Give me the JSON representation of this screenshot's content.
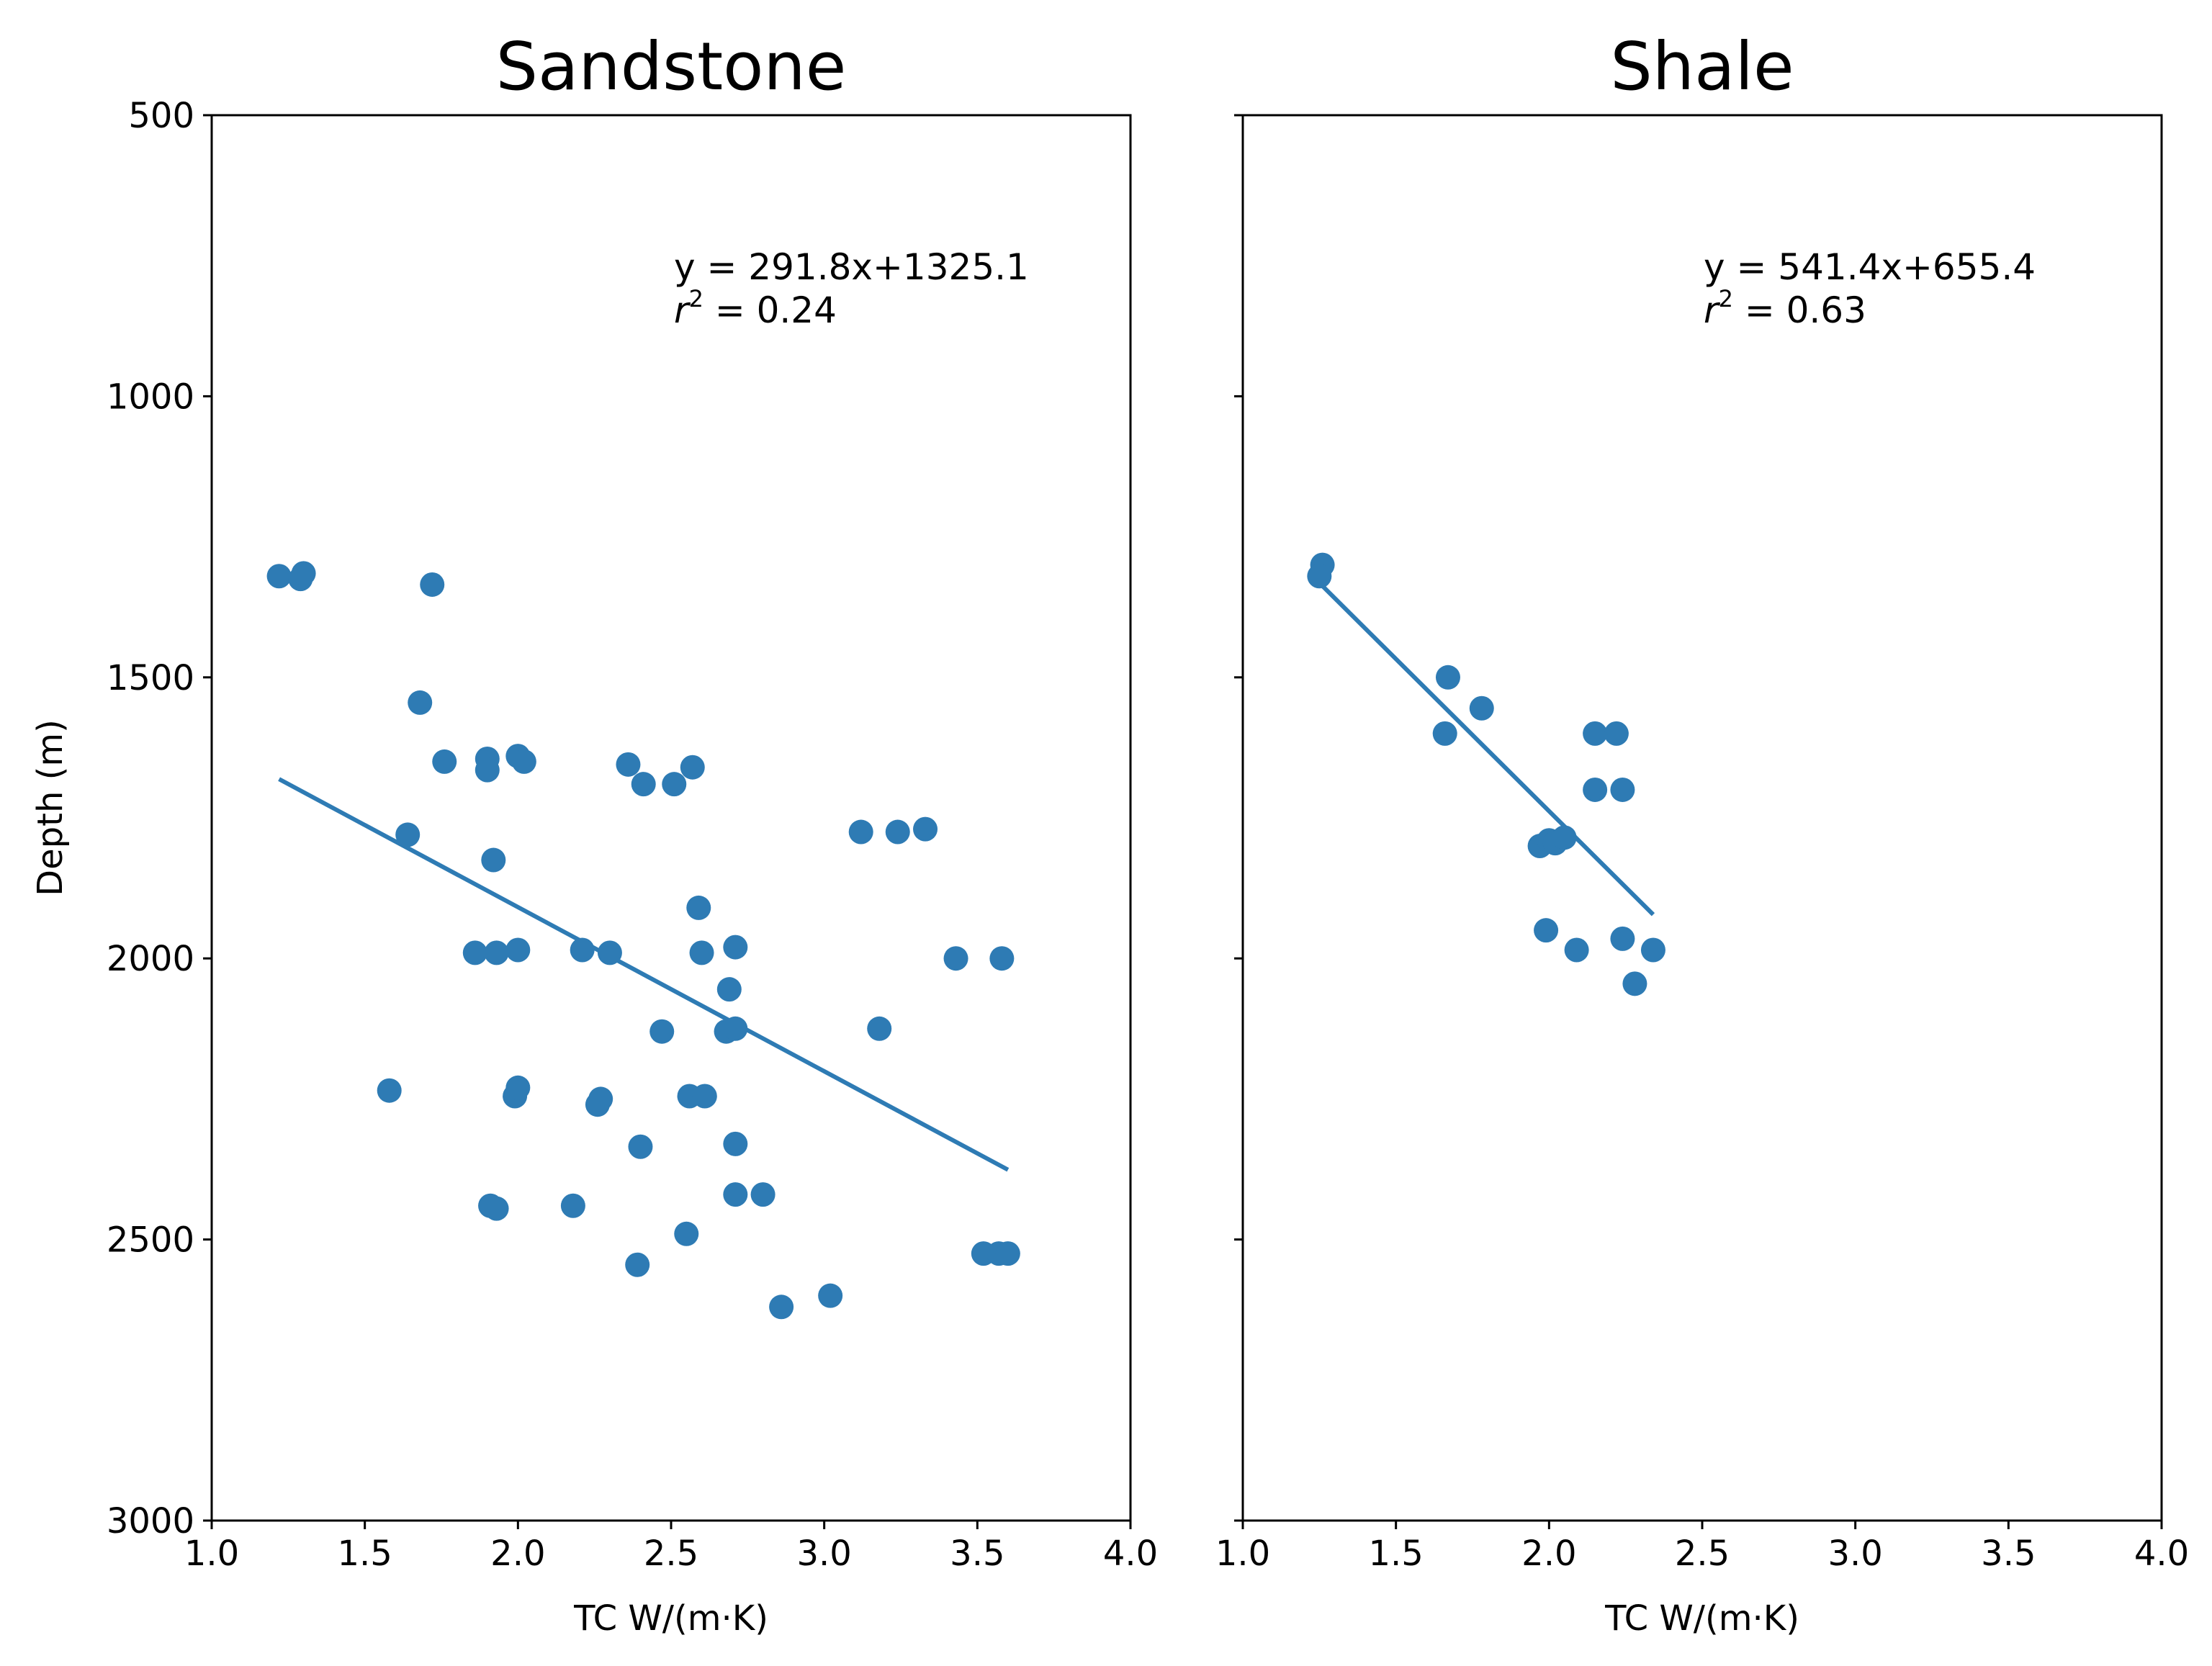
{
  "chart_data": [
    {
      "type": "scatter",
      "title": "Sandstone",
      "xlabel": "TC W/(m·K)",
      "ylabel": "Depth (m)",
      "xlim": [
        1.0,
        4.0
      ],
      "ylim": [
        500,
        3000
      ],
      "y_inverted": true,
      "xticks": [
        "1.0",
        "1.5",
        "2.0",
        "2.5",
        "3.0",
        "3.5",
        "4.0"
      ],
      "yticks": [
        "500",
        "1000",
        "1500",
        "2000",
        "2500",
        "3000"
      ],
      "grid": false,
      "color": "#2e7bb4",
      "annotation": {
        "equation": "y = 291.8x+1325.1",
        "r2_prefix": "r",
        "r2_sup": "2",
        "r2_value": " = 0.24"
      },
      "fit_line": {
        "x": [
          1.22,
          3.6
        ],
        "y": [
          1681,
          2376
        ]
      },
      "points": [
        [
          1.22,
          1320
        ],
        [
          1.29,
          1325
        ],
        [
          1.3,
          1315
        ],
        [
          1.72,
          1335
        ],
        [
          1.68,
          1545
        ],
        [
          1.64,
          1780
        ],
        [
          1.76,
          1650
        ],
        [
          1.9,
          1645
        ],
        [
          1.9,
          1665
        ],
        [
          2.0,
          1640
        ],
        [
          2.02,
          1650
        ],
        [
          1.92,
          1825
        ],
        [
          2.36,
          1655
        ],
        [
          2.41,
          1690
        ],
        [
          2.51,
          1690
        ],
        [
          2.57,
          1660
        ],
        [
          3.12,
          1775
        ],
        [
          3.24,
          1775
        ],
        [
          3.33,
          1770
        ],
        [
          2.59,
          1910
        ],
        [
          1.86,
          1990
        ],
        [
          1.93,
          1990
        ],
        [
          2.0,
          1985
        ],
        [
          2.21,
          1985
        ],
        [
          2.3,
          1990
        ],
        [
          2.6,
          1990
        ],
        [
          2.71,
          1980
        ],
        [
          3.43,
          2000
        ],
        [
          3.58,
          2000
        ],
        [
          2.69,
          2055
        ],
        [
          2.47,
          2130
        ],
        [
          2.68,
          2130
        ],
        [
          2.71,
          2125
        ],
        [
          3.18,
          2125
        ],
        [
          1.58,
          2235
        ],
        [
          1.99,
          2245
        ],
        [
          2.0,
          2230
        ],
        [
          2.26,
          2260
        ],
        [
          2.27,
          2250
        ],
        [
          2.56,
          2245
        ],
        [
          2.61,
          2245
        ],
        [
          2.4,
          2335
        ],
        [
          2.71,
          2330
        ],
        [
          1.91,
          2440
        ],
        [
          1.93,
          2445
        ],
        [
          2.18,
          2440
        ],
        [
          2.71,
          2420
        ],
        [
          2.8,
          2420
        ],
        [
          2.55,
          2490
        ],
        [
          2.39,
          2545
        ],
        [
          3.52,
          2525
        ],
        [
          3.57,
          2525
        ],
        [
          3.6,
          2525
        ],
        [
          2.86,
          2620
        ],
        [
          3.02,
          2600
        ]
      ]
    },
    {
      "type": "scatter",
      "title": "Shale",
      "xlabel": "TC W/(m·K)",
      "ylabel": "",
      "xlim": [
        1.0,
        4.0
      ],
      "ylim": [
        500,
        3000
      ],
      "y_inverted": true,
      "xticks": [
        "1.0",
        "1.5",
        "2.0",
        "2.5",
        "3.0",
        "3.5",
        "4.0"
      ],
      "yticks": [],
      "grid": false,
      "color": "#2e7bb4",
      "annotation": {
        "equation": "y = 541.4x+655.4",
        "r2_prefix": "r",
        "r2_sup": "2",
        "r2_value": " = 0.63"
      },
      "fit_line": {
        "x": [
          1.25,
          2.34
        ],
        "y": [
          1332,
          1922
        ]
      },
      "points": [
        [
          1.26,
          1300
        ],
        [
          1.25,
          1320
        ],
        [
          1.67,
          1500
        ],
        [
          1.66,
          1600
        ],
        [
          1.78,
          1555
        ],
        [
          2.15,
          1600
        ],
        [
          2.22,
          1600
        ],
        [
          2.15,
          1700
        ],
        [
          2.24,
          1700
        ],
        [
          1.97,
          1800
        ],
        [
          2.0,
          1790
        ],
        [
          2.02,
          1795
        ],
        [
          2.05,
          1785
        ],
        [
          1.99,
          1950
        ],
        [
          2.09,
          1985
        ],
        [
          2.24,
          1965
        ],
        [
          2.34,
          1985
        ],
        [
          2.28,
          2045
        ]
      ]
    }
  ]
}
